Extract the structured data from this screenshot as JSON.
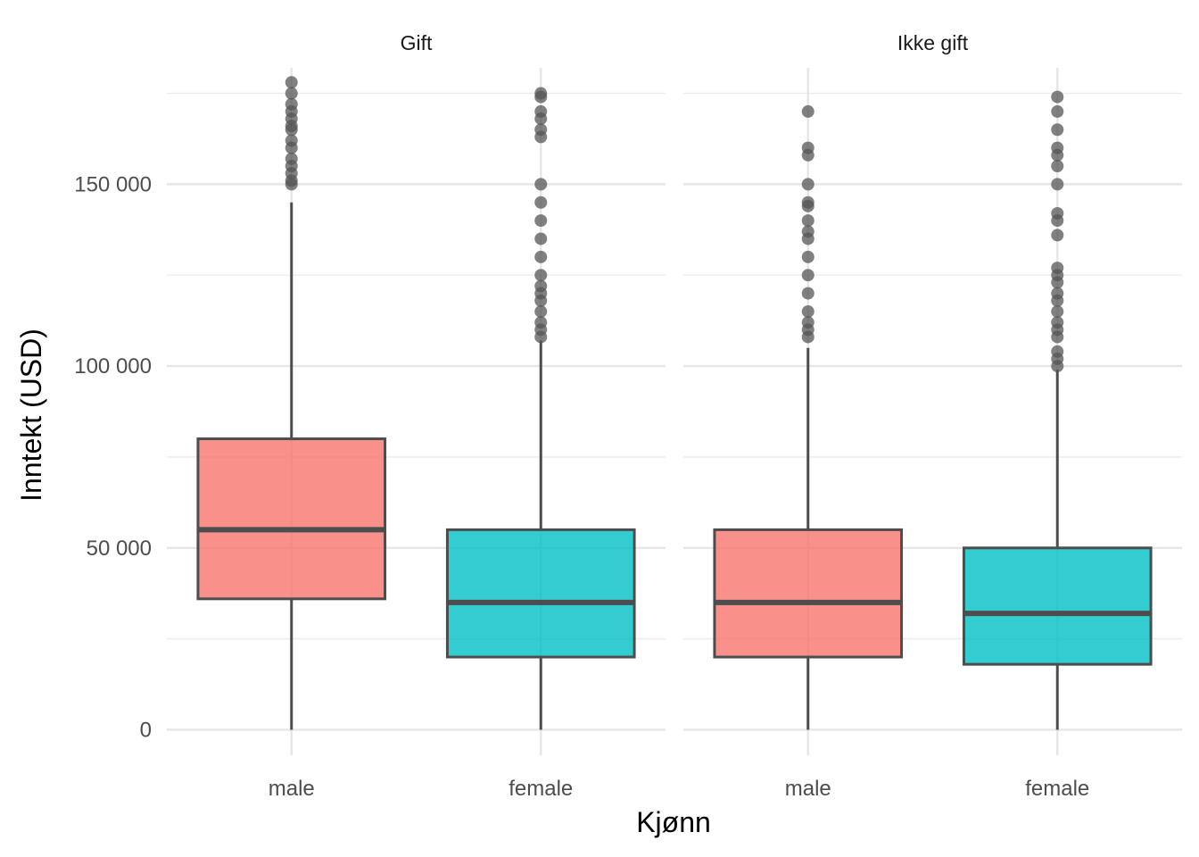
{
  "chart_data": {
    "type": "boxplot",
    "title": "",
    "xlabel": "Kjønn",
    "ylabel": "Inntekt (USD)",
    "ylim": [
      -7000,
      182000
    ],
    "y_ticks": [
      {
        "value": 0,
        "label": "0"
      },
      {
        "value": 50000,
        "label": "50 000"
      },
      {
        "value": 100000,
        "label": "100 000"
      },
      {
        "value": 150000,
        "label": "150 000"
      }
    ],
    "y_minor_ticks": [
      25000,
      75000,
      125000,
      175000
    ],
    "categories": [
      "male",
      "female"
    ],
    "colors": {
      "male": "#F8766D",
      "female": "#00BFC4"
    },
    "fill_opacity": 0.8,
    "grid": true,
    "legend": "none",
    "panels": [
      {
        "label": "Gift",
        "groups": [
          {
            "category": "male",
            "whisker_low": 0,
            "q1": 36000,
            "median": 55000,
            "q3": 80000,
            "whisker_high": 145000,
            "outliers": [
              150000,
              151000,
              153000,
              155000,
              157000,
              160000,
              162000,
              165000,
              166000,
              168000,
              170000,
              172000,
              175000,
              178000
            ]
          },
          {
            "category": "female",
            "whisker_low": 0,
            "q1": 20000,
            "median": 35000,
            "q3": 55000,
            "whisker_high": 107000,
            "outliers": [
              108000,
              110000,
              112000,
              115000,
              118000,
              120000,
              122000,
              125000,
              130000,
              135000,
              140000,
              145000,
              150000,
              163000,
              165000,
              168000,
              170000,
              174000,
              175000
            ]
          }
        ]
      },
      {
        "label": "Ikke gift",
        "groups": [
          {
            "category": "male",
            "whisker_low": 0,
            "q1": 20000,
            "median": 35000,
            "q3": 55000,
            "whisker_high": 105000,
            "outliers": [
              108000,
              110000,
              112000,
              115000,
              120000,
              125000,
              130000,
              135000,
              137000,
              140000,
              144000,
              145000,
              150000,
              158000,
              160000,
              170000
            ]
          },
          {
            "category": "female",
            "whisker_low": 0,
            "q1": 18000,
            "median": 32000,
            "q3": 50000,
            "whisker_high": 99000,
            "outliers": [
              100000,
              102000,
              104000,
              108000,
              110000,
              112000,
              115000,
              118000,
              120000,
              123000,
              125000,
              127000,
              136000,
              140000,
              142000,
              150000,
              155000,
              158000,
              160000,
              165000,
              170000,
              174000
            ]
          }
        ]
      }
    ]
  }
}
